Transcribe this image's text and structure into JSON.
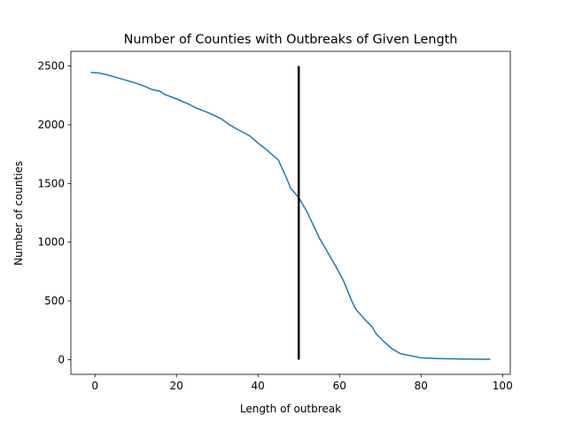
{
  "chart_data": {
    "type": "line",
    "title": "Number of Counties with Outbreaks of Given Length",
    "x_label": "Length of outbreak",
    "y_label": "Number of counties",
    "x": [
      -1,
      1,
      3,
      5,
      8,
      10,
      12,
      14,
      16,
      17,
      20,
      23,
      25,
      28,
      31,
      33,
      35,
      38,
      40,
      42,
      44,
      45,
      47,
      48,
      50,
      52,
      55,
      57,
      59,
      61,
      63,
      64,
      66,
      68,
      69,
      71,
      73,
      75,
      78,
      80,
      84,
      90,
      97
    ],
    "series": [
      {
        "color": "#1f77b4",
        "values": [
          2445,
          2440,
          2425,
          2405,
          2375,
          2355,
          2330,
          2300,
          2285,
          2260,
          2220,
          2175,
          2140,
          2100,
          2050,
          2000,
          1960,
          1905,
          1845,
          1790,
          1730,
          1700,
          1545,
          1460,
          1380,
          1260,
          1040,
          920,
          800,
          670,
          500,
          430,
          350,
          280,
          220,
          150,
          90,
          50,
          30,
          15,
          10,
          5,
          3
        ]
      }
    ],
    "vline": {
      "x": 50,
      "ymin": 0,
      "ymax": 2500,
      "color": "#000000"
    },
    "xlim": [
      -5.9,
      101.9
    ],
    "ylim": [
      -125,
      2625
    ],
    "xticks": [
      0,
      20,
      40,
      60,
      80,
      100
    ],
    "yticks": [
      0,
      500,
      1000,
      1500,
      2000,
      2500
    ]
  }
}
